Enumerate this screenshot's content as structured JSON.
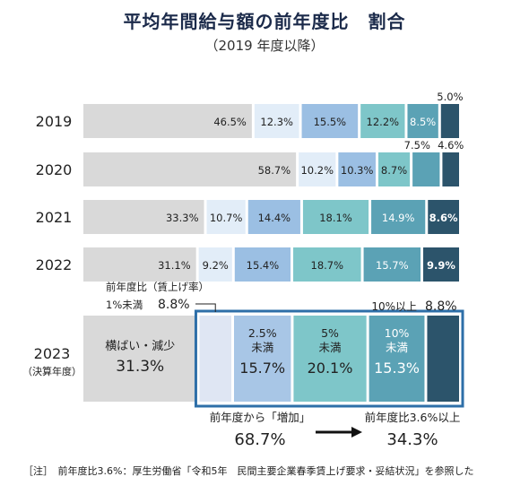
{
  "chart_data": {
    "type": "bar",
    "stacked": true,
    "orientation": "horizontal",
    "title": "平均年間給与額の前年度比　割合",
    "subtitle": "（2019 年度以降）",
    "categories": [
      "2019",
      "2020",
      "2021",
      "2022"
    ],
    "series": [
      {
        "values": [
          46.5,
          58.7,
          33.3,
          31.1
        ],
        "color": "#d9d9d9"
      },
      {
        "values": [
          12.3,
          10.2,
          10.7,
          9.2
        ],
        "color": "#e2edf8"
      },
      {
        "values": [
          15.5,
          10.3,
          14.4,
          15.4
        ],
        "color": "#9bbfe3"
      },
      {
        "values": [
          12.2,
          8.7,
          18.1,
          18.7
        ],
        "color": "#7ec6c9"
      },
      {
        "values": [
          8.5,
          7.5,
          14.9,
          15.7
        ],
        "color": "#5ba2b5"
      },
      {
        "values": [
          5.0,
          4.6,
          8.6,
          9.9
        ],
        "color": "#2c546b"
      }
    ],
    "value_labels": [
      [
        "46.5%",
        "12.3%",
        "15.5%",
        "12.2%",
        "8.5%",
        "5.0%"
      ],
      [
        "58.7%",
        "10.2%",
        "10.3%",
        "8.7%",
        "7.5%",
        "4.6%"
      ],
      [
        "33.3%",
        "10.7%",
        "14.4%",
        "18.1%",
        "14.9%",
        "8.6%"
      ],
      [
        "31.1%",
        "9.2%",
        "15.4%",
        "18.7%",
        "15.7%",
        "9.9%"
      ]
    ],
    "row_2023": {
      "year": "2023",
      "year_note": "（決算年度）",
      "flat_label": "横ばい・減少",
      "flat_value": "31.3%",
      "flat_pct": 31.3,
      "under1_label_a": "前年度比（賃上げ率）",
      "under1_label_b": "1%未満",
      "under1_value": "8.8%",
      "under1_pct": 8.8,
      "seg_2_5_a": "2.5%",
      "seg_2_5_b": "未満",
      "seg_2_5_value": "15.7%",
      "seg_2_5_pct": 15.7,
      "seg_5_a": "5%",
      "seg_5_b": "未満",
      "seg_5_value": "20.1%",
      "seg_5_pct": 20.1,
      "seg_10_a": "10%",
      "seg_10_b": "未満",
      "seg_10_value": "15.3%",
      "seg_10_pct": 15.3,
      "over10_label": "10%以上",
      "over10_value": "8.8%",
      "over10_pct": 8.8
    },
    "increase_label": "前年度から「増加」",
    "increase_value": "68.7%",
    "over36_label": "前年度比3.6%以上",
    "over36_value": "34.3%",
    "note": "［注］　前年度比3.6%：厚生労働省「令和5年　民間主要企業春季賃上げ要求・妥結状況」を参照した",
    "colors": {
      "accent_box": "#2e6fa8",
      "dark": "#2c546b",
      "under1": "#dfe6f3",
      "seg_2_5": "#a8c6e6",
      "seg_5": "#7ec6c9",
      "seg_10": "#5ba2b5"
    }
  }
}
